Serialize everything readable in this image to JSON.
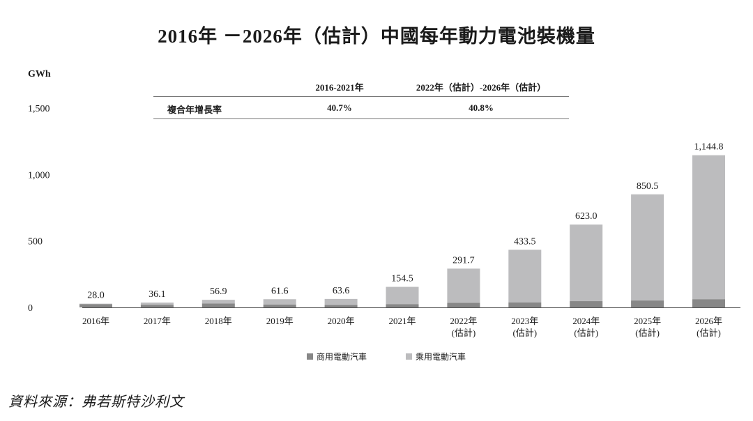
{
  "title": "2016年 －2026年（估計）中國每年動力電池裝機量",
  "unit": "GWh",
  "cagr_table": {
    "header_period1": "2016-2021年",
    "header_period2": "2022年（估計）-2026年（估計）",
    "row_label": "複合年增長率",
    "value_period1": "40.7%",
    "value_period2": "40.8%"
  },
  "legend": {
    "commercial": "商用電動汽車",
    "passenger": "乘用電動汽車"
  },
  "source": "資料來源：弗若斯特沙利文",
  "colors": {
    "commercial": "#878787",
    "passenger": "#bcbcbe",
    "axis": "#555555"
  },
  "chart_data": {
    "type": "bar",
    "stacked": true,
    "categories": [
      [
        "2016年"
      ],
      [
        "2017年"
      ],
      [
        "2018年"
      ],
      [
        "2019年"
      ],
      [
        "2020年"
      ],
      [
        "2021年"
      ],
      [
        "2022年",
        "(估計)"
      ],
      [
        "2023年",
        "(估計)"
      ],
      [
        "2024年",
        "(估計)"
      ],
      [
        "2025年",
        "(估計)"
      ],
      [
        "2026年",
        "(估計)"
      ]
    ],
    "series": [
      {
        "name": "商用電動汽車",
        "values": [
          25,
          20,
          30,
          22,
          18,
          25,
          35,
          38,
          47,
          52,
          62
        ]
      },
      {
        "name": "乘用電動汽車",
        "values": [
          3.0,
          16.1,
          26.9,
          39.6,
          45.6,
          129.5,
          256.7,
          395.5,
          576.0,
          798.5,
          1082.8
        ]
      }
    ],
    "totals_labels": [
      "28.0",
      "36.1",
      "56.9",
      "61.6",
      "63.6",
      "154.5",
      "291.7",
      "433.5",
      "623.0",
      "850.5",
      "1,144.8"
    ],
    "totals": [
      28.0,
      36.1,
      56.9,
      61.6,
      63.6,
      154.5,
      291.7,
      433.5,
      623.0,
      850.5,
      1144.8
    ],
    "ylabel": "GWh",
    "yticks": [
      {
        "value": 0,
        "label": "0"
      },
      {
        "value": 500,
        "label": "500"
      },
      {
        "value": 1000,
        "label": "1,000"
      },
      {
        "value": 1500,
        "label": "1,500"
      }
    ],
    "ylim": [
      0,
      1500
    ],
    "grid": false,
    "legend_position": "bottom-center"
  }
}
